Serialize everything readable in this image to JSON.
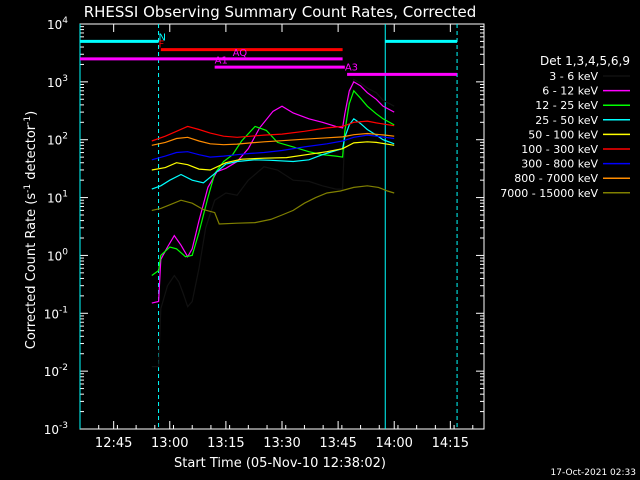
{
  "chart_data": {
    "type": "line",
    "title": "RHESSI Observing Summary Count Rates, Corrected",
    "xlabel": "Start Time (05-Nov-10 12:38:02)",
    "ylabel": "Corrected Count Rate (s⁻¹ detector⁻¹)",
    "ylabel_parts": {
      "main": "Corrected Count Rate (s",
      "e1": "-1",
      "mid": " detector",
      "e2": "-1",
      "end": ")"
    },
    "y_scale": "log",
    "ylim": [
      0.001,
      10000
    ],
    "xlim_min": [
      12.6,
      14.4
    ],
    "x_ticks": [
      {
        "v": 12.75,
        "label": "12:45"
      },
      {
        "v": 13.0,
        "label": "13:00"
      },
      {
        "v": 13.25,
        "label": "13:15"
      },
      {
        "v": 13.5,
        "label": "13:30"
      },
      {
        "v": 13.75,
        "label": "13:45"
      },
      {
        "v": 14.0,
        "label": "14:00"
      },
      {
        "v": 14.25,
        "label": "14:15"
      }
    ],
    "y_ticks": [
      {
        "v": 0.001,
        "base": "10",
        "exp": "-3"
      },
      {
        "v": 0.01,
        "base": "10",
        "exp": "-2"
      },
      {
        "v": 0.1,
        "base": "10",
        "exp": "-1"
      },
      {
        "v": 1,
        "base": "10",
        "exp": "0"
      },
      {
        "v": 10,
        "base": "10",
        "exp": "1"
      },
      {
        "v": 100,
        "base": "10",
        "exp": "2"
      },
      {
        "v": 1000,
        "base": "10",
        "exp": "3"
      },
      {
        "v": 10000,
        "base": "10",
        "exp": "4"
      }
    ],
    "legend_title": "Det 1,3,4,5,6,9",
    "legend_position": "right",
    "series": [
      {
        "name": "3 - 6 keV",
        "color": "#000000",
        "points": [
          [
            12.92,
            0.012
          ],
          [
            12.95,
            0.012
          ],
          [
            12.96,
            0.12
          ],
          [
            12.99,
            0.3
          ],
          [
            13.02,
            0.45
          ],
          [
            13.04,
            0.35
          ],
          [
            13.06,
            0.22
          ],
          [
            13.08,
            0.13
          ],
          [
            13.1,
            0.16
          ],
          [
            13.13,
            0.6
          ],
          [
            13.16,
            3
          ],
          [
            13.2,
            9
          ],
          [
            13.25,
            12
          ],
          [
            13.3,
            11
          ],
          [
            13.35,
            20
          ],
          [
            13.42,
            34
          ],
          [
            13.48,
            30
          ],
          [
            13.55,
            20
          ],
          [
            13.62,
            19
          ],
          [
            13.68,
            16
          ],
          [
            13.74,
            14
          ],
          [
            13.77,
            14
          ],
          [
            13.78,
            120
          ],
          [
            13.8,
            600
          ],
          [
            13.82,
            1100
          ],
          [
            13.85,
            950
          ],
          [
            13.88,
            780
          ],
          [
            13.92,
            650
          ],
          [
            13.95,
            480
          ],
          [
            14.0,
            380
          ]
        ]
      },
      {
        "name": "6 - 12 keV",
        "color": "#ff00ff",
        "points": [
          [
            12.92,
            0.15
          ],
          [
            12.95,
            0.16
          ],
          [
            12.96,
            0.85
          ],
          [
            12.99,
            1.4
          ],
          [
            13.02,
            2.2
          ],
          [
            13.05,
            1.5
          ],
          [
            13.08,
            0.95
          ],
          [
            13.1,
            1.3
          ],
          [
            13.13,
            4
          ],
          [
            13.17,
            15
          ],
          [
            13.21,
            28
          ],
          [
            13.25,
            32
          ],
          [
            13.3,
            42
          ],
          [
            13.35,
            70
          ],
          [
            13.4,
            160
          ],
          [
            13.46,
            310
          ],
          [
            13.5,
            380
          ],
          [
            13.55,
            290
          ],
          [
            13.62,
            230
          ],
          [
            13.68,
            200
          ],
          [
            13.74,
            170
          ],
          [
            13.77,
            160
          ],
          [
            13.78,
            280
          ],
          [
            13.8,
            700
          ],
          [
            13.82,
            1000
          ],
          [
            13.85,
            850
          ],
          [
            13.88,
            650
          ],
          [
            13.92,
            500
          ],
          [
            13.95,
            380
          ],
          [
            14.0,
            300
          ]
        ]
      },
      {
        "name": "12 - 25 keV",
        "color": "#00ff00",
        "points": [
          [
            12.92,
            0.45
          ],
          [
            12.95,
            0.55
          ],
          [
            12.96,
            1.0
          ],
          [
            13.0,
            1.4
          ],
          [
            13.03,
            1.3
          ],
          [
            13.07,
            0.95
          ],
          [
            13.1,
            1.0
          ],
          [
            13.13,
            2.5
          ],
          [
            13.17,
            10
          ],
          [
            13.2,
            26
          ],
          [
            13.24,
            42
          ],
          [
            13.28,
            55
          ],
          [
            13.32,
            95
          ],
          [
            13.38,
            170
          ],
          [
            13.43,
            145
          ],
          [
            13.48,
            90
          ],
          [
            13.55,
            75
          ],
          [
            13.62,
            62
          ],
          [
            13.68,
            55
          ],
          [
            13.74,
            52
          ],
          [
            13.77,
            50
          ],
          [
            13.78,
            140
          ],
          [
            13.8,
            420
          ],
          [
            13.82,
            700
          ],
          [
            13.85,
            520
          ],
          [
            13.88,
            380
          ],
          [
            13.92,
            280
          ],
          [
            13.95,
            230
          ],
          [
            14.0,
            180
          ]
        ]
      },
      {
        "name": "25 - 50 keV",
        "color": "#00ffff",
        "points": [
          [
            12.92,
            14
          ],
          [
            12.96,
            16
          ],
          [
            13.0,
            20
          ],
          [
            13.05,
            25
          ],
          [
            13.1,
            20
          ],
          [
            13.15,
            18
          ],
          [
            13.2,
            26
          ],
          [
            13.25,
            38
          ],
          [
            13.3,
            42
          ],
          [
            13.38,
            45
          ],
          [
            13.45,
            44
          ],
          [
            13.55,
            42
          ],
          [
            13.62,
            45
          ],
          [
            13.68,
            55
          ],
          [
            13.74,
            65
          ],
          [
            13.77,
            70
          ],
          [
            13.78,
            110
          ],
          [
            13.8,
            180
          ],
          [
            13.82,
            230
          ],
          [
            13.85,
            190
          ],
          [
            13.88,
            150
          ],
          [
            13.92,
            120
          ],
          [
            13.95,
            100
          ],
          [
            14.0,
            85
          ]
        ]
      },
      {
        "name": "50 - 100 keV",
        "color": "#ffff00",
        "points": [
          [
            12.92,
            30
          ],
          [
            12.98,
            33
          ],
          [
            13.03,
            40
          ],
          [
            13.08,
            37
          ],
          [
            13.13,
            31
          ],
          [
            13.18,
            30
          ],
          [
            13.25,
            40
          ],
          [
            13.32,
            46
          ],
          [
            13.42,
            48
          ],
          [
            13.52,
            49
          ],
          [
            13.62,
            56
          ],
          [
            13.7,
            62
          ],
          [
            13.77,
            70
          ],
          [
            13.82,
            88
          ],
          [
            13.88,
            92
          ],
          [
            13.92,
            90
          ],
          [
            13.96,
            85
          ],
          [
            14.0,
            80
          ]
        ]
      },
      {
        "name": "100 - 300 keV",
        "color": "#ff0000",
        "points": [
          [
            12.92,
            95
          ],
          [
            12.98,
            115
          ],
          [
            13.03,
            140
          ],
          [
            13.08,
            170
          ],
          [
            13.13,
            150
          ],
          [
            13.18,
            130
          ],
          [
            13.24,
            115
          ],
          [
            13.3,
            110
          ],
          [
            13.36,
            115
          ],
          [
            13.42,
            120
          ],
          [
            13.5,
            125
          ],
          [
            13.6,
            140
          ],
          [
            13.7,
            160
          ],
          [
            13.77,
            170
          ],
          [
            13.82,
            200
          ],
          [
            13.88,
            210
          ],
          [
            13.92,
            195
          ],
          [
            13.96,
            185
          ],
          [
            14.0,
            175
          ]
        ]
      },
      {
        "name": "300 - 800 keV",
        "color": "#0000ff",
        "points": [
          [
            12.92,
            45
          ],
          [
            12.98,
            52
          ],
          [
            13.03,
            60
          ],
          [
            13.08,
            62
          ],
          [
            13.13,
            55
          ],
          [
            13.18,
            50
          ],
          [
            13.24,
            52
          ],
          [
            13.3,
            55
          ],
          [
            13.36,
            58
          ],
          [
            13.42,
            60
          ],
          [
            13.5,
            65
          ],
          [
            13.6,
            75
          ],
          [
            13.7,
            85
          ],
          [
            13.77,
            95
          ],
          [
            13.82,
            110
          ],
          [
            13.88,
            120
          ],
          [
            13.92,
            115
          ],
          [
            13.96,
            110
          ],
          [
            14.0,
            105
          ]
        ]
      },
      {
        "name": "800 - 7000 keV",
        "color": "#ff8c00",
        "points": [
          [
            12.92,
            80
          ],
          [
            12.98,
            90
          ],
          [
            13.03,
            105
          ],
          [
            13.08,
            110
          ],
          [
            13.13,
            95
          ],
          [
            13.18,
            85
          ],
          [
            13.24,
            82
          ],
          [
            13.3,
            84
          ],
          [
            13.36,
            88
          ],
          [
            13.42,
            92
          ],
          [
            13.5,
            96
          ],
          [
            13.6,
            102
          ],
          [
            13.7,
            108
          ],
          [
            13.77,
            112
          ],
          [
            13.82,
            122
          ],
          [
            13.88,
            128
          ],
          [
            13.92,
            124
          ],
          [
            13.96,
            120
          ],
          [
            14.0,
            115
          ]
        ]
      },
      {
        "name": "7000 - 15000 keV",
        "color": "#808000",
        "points": [
          [
            12.92,
            6
          ],
          [
            12.96,
            6.5
          ],
          [
            13.0,
            7.5
          ],
          [
            13.05,
            9
          ],
          [
            13.1,
            8
          ],
          [
            13.15,
            6.2
          ],
          [
            13.2,
            5.5
          ],
          [
            13.22,
            3.5
          ],
          [
            13.3,
            3.6
          ],
          [
            13.38,
            3.7
          ],
          [
            13.45,
            4.2
          ],
          [
            13.5,
            5
          ],
          [
            13.55,
            6
          ],
          [
            13.6,
            8
          ],
          [
            13.65,
            10
          ],
          [
            13.7,
            12
          ],
          [
            13.76,
            13
          ],
          [
            13.82,
            15
          ],
          [
            13.88,
            16
          ],
          [
            13.93,
            15
          ],
          [
            13.97,
            13
          ],
          [
            14.0,
            12
          ]
        ]
      }
    ],
    "annotations": [
      {
        "label": "N",
        "color": "#00ffff",
        "x": 12.95,
        "y": 4800
      },
      {
        "label": "F",
        "color": "#ff0000",
        "x": 12.95,
        "y": 3600
      },
      {
        "label": "AQ",
        "color": "#ff00ff",
        "x": 13.28,
        "y": 2600
      },
      {
        "label": "A1",
        "color": "#ff00ff",
        "x": 13.2,
        "y": 1900
      },
      {
        "label": "A3",
        "color": "#ff00ff",
        "x": 13.78,
        "y": 1450
      }
    ],
    "bars": [
      {
        "color": "#00ffff",
        "y": 5000,
        "x0": 12.6,
        "x1": 12.95
      },
      {
        "color": "#00ffff",
        "y": 5000,
        "x0": 13.96,
        "x1": 14.28
      },
      {
        "color": "#ff0000",
        "y": 3600,
        "x0": 12.96,
        "x1": 13.77
      },
      {
        "color": "#ff00ff",
        "y": 2500,
        "x0": 12.6,
        "x1": 13.77
      },
      {
        "color": "#ff00ff",
        "y": 1800,
        "x0": 13.2,
        "x1": 13.78
      },
      {
        "color": "#ff00ff",
        "y": 1350,
        "x0": 13.79,
        "x1": 14.28
      }
    ],
    "vlines": [
      {
        "x": 12.6,
        "color": "#00ffff",
        "dash": "none"
      },
      {
        "x": 12.95,
        "color": "#00ffff",
        "dash": "4,3"
      },
      {
        "x": 13.96,
        "color": "#00ffff",
        "dash": "none"
      },
      {
        "x": 14.28,
        "color": "#00ffff",
        "dash": "4,3"
      }
    ],
    "footer_date": "17-Oct-2021 02:33"
  }
}
